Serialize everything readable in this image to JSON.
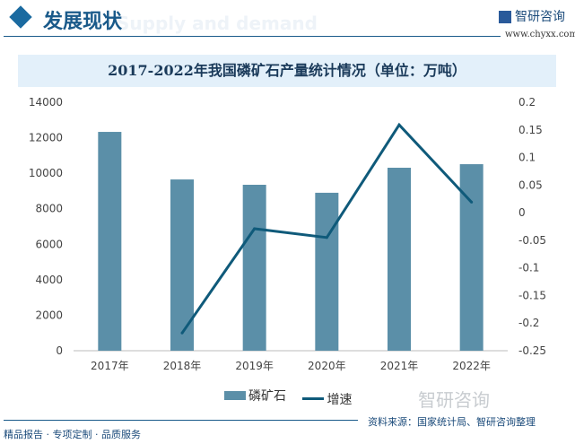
{
  "header": {
    "title": "发展现状",
    "bg_text": "Supply and demand",
    "logo_text": "智研咨询",
    "url": "www.chyxx.com"
  },
  "footer": {
    "left": "精品报告 · 专项定制 · 品质服务",
    "source": "资料来源：国家统计局、智研咨询整理",
    "watermark": "智研咨询"
  },
  "colors": {
    "bar": "#5b8fa8",
    "line": "#0f5a7a",
    "accent": "#1a5a8a"
  },
  "chart_data": {
    "type": "bar+line",
    "title": "2017-2022年我国磷矿石产量统计情况（单位：万吨）",
    "categories": [
      "2017年",
      "2018年",
      "2019年",
      "2020年",
      "2021年",
      "2022年"
    ],
    "series": [
      {
        "name": "磷矿石",
        "type": "bar",
        "axis": "left",
        "values": [
          12330,
          9650,
          9350,
          8900,
          10310,
          10510
        ]
      },
      {
        "name": "增速",
        "type": "line",
        "axis": "right",
        "values": [
          null,
          -0.218,
          -0.029,
          -0.045,
          0.159,
          0.019
        ]
      }
    ],
    "ylim_left": [
      0,
      14000
    ],
    "yticks_left": [
      "0",
      "2000",
      "4000",
      "6000",
      "8000",
      "10000",
      "12000",
      "14000"
    ],
    "ylim_right": [
      -0.25,
      0.2
    ],
    "yticks_right": [
      "-0.25",
      "-0.2",
      "-0.15",
      "-0.1",
      "-0.05",
      "0",
      "0.05",
      "0.1",
      "0.15",
      "0.2"
    ],
    "grid": false,
    "legend": "bottom"
  }
}
